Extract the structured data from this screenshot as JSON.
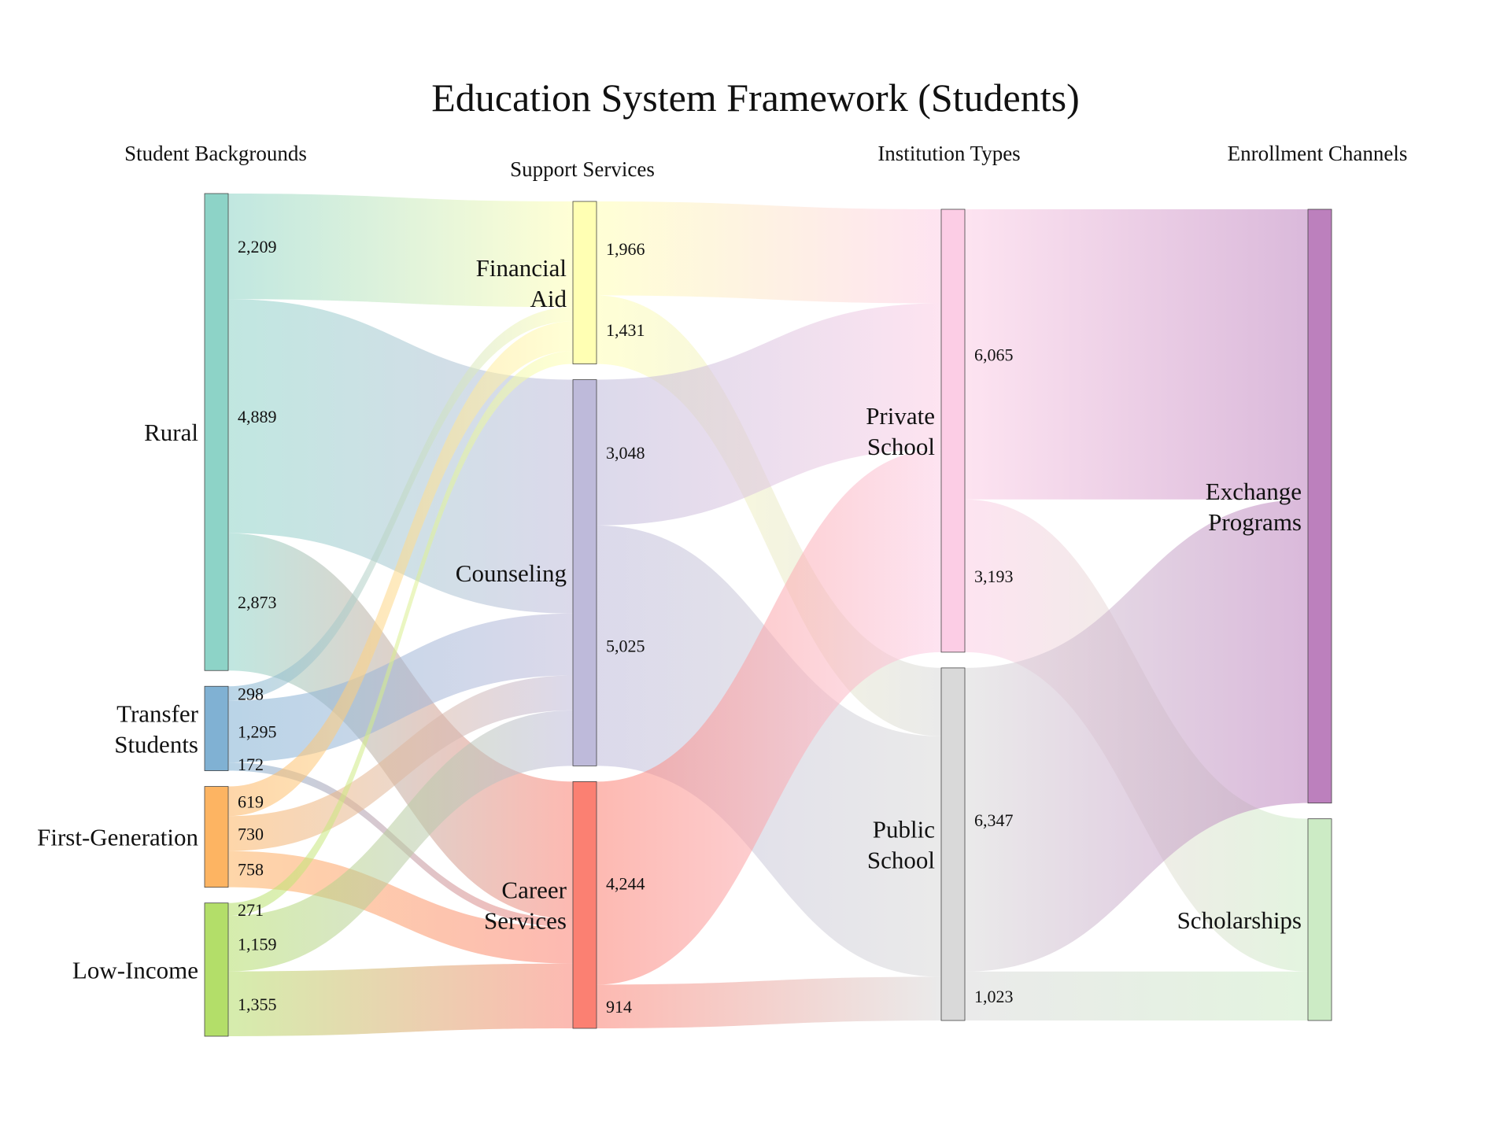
{
  "title": "Education System Framework (Students)",
  "columns": [
    "Student Backgrounds",
    "Support Services",
    "Institution Types",
    "Enrollment Channels"
  ],
  "chart_data": {
    "type": "sankey",
    "nodes": [
      {
        "id": "rural",
        "label": "Rural",
        "column": 0,
        "color": "#8dd3c7"
      },
      {
        "id": "transfer",
        "label": "Transfer Students",
        "column": 0,
        "color": "#80b1d3"
      },
      {
        "id": "firstgen",
        "label": "First-Generation",
        "column": 0,
        "color": "#fdb462"
      },
      {
        "id": "lowincome",
        "label": "Low-Income",
        "column": 0,
        "color": "#b3de69"
      },
      {
        "id": "finaid",
        "label": "Financial Aid",
        "column": 1,
        "color": "#ffffb3"
      },
      {
        "id": "counseling",
        "label": "Counseling",
        "column": 1,
        "color": "#bebada"
      },
      {
        "id": "career",
        "label": "Career Services",
        "column": 1,
        "color": "#fb8072"
      },
      {
        "id": "private",
        "label": "Private School",
        "column": 2,
        "color": "#fccde5"
      },
      {
        "id": "public",
        "label": "Public School",
        "column": 2,
        "color": "#d9d9d9"
      },
      {
        "id": "exchange",
        "label": "Exchange Programs",
        "column": 3,
        "color": "#bc80bd"
      },
      {
        "id": "scholar",
        "label": "Scholarships",
        "column": 3,
        "color": "#ccebc5"
      }
    ],
    "links": [
      {
        "source": "rural",
        "target": "finaid",
        "value": 2209,
        "label": "2,209"
      },
      {
        "source": "rural",
        "target": "counseling",
        "value": 4889,
        "label": "4,889"
      },
      {
        "source": "rural",
        "target": "career",
        "value": 2873,
        "label": "2,873"
      },
      {
        "source": "transfer",
        "target": "finaid",
        "value": 298,
        "label": "298"
      },
      {
        "source": "transfer",
        "target": "counseling",
        "value": 1295,
        "label": "1,295"
      },
      {
        "source": "transfer",
        "target": "career",
        "value": 172,
        "label": "172"
      },
      {
        "source": "firstgen",
        "target": "finaid",
        "value": 619,
        "label": "619"
      },
      {
        "source": "firstgen",
        "target": "counseling",
        "value": 730,
        "label": "730"
      },
      {
        "source": "firstgen",
        "target": "career",
        "value": 758,
        "label": "758"
      },
      {
        "source": "lowincome",
        "target": "finaid",
        "value": 271,
        "label": "271"
      },
      {
        "source": "lowincome",
        "target": "counseling",
        "value": 1159,
        "label": "1,159"
      },
      {
        "source": "lowincome",
        "target": "career",
        "value": 1355,
        "label": "1,355"
      },
      {
        "source": "finaid",
        "target": "private",
        "value": 1966,
        "label": "1,966"
      },
      {
        "source": "finaid",
        "target": "public",
        "value": 1431,
        "label": "1,431"
      },
      {
        "source": "counseling",
        "target": "private",
        "value": 3048,
        "label": "3,048"
      },
      {
        "source": "counseling",
        "target": "public",
        "value": 5025,
        "label": "5,025"
      },
      {
        "source": "career",
        "target": "private",
        "value": 4244,
        "label": "4,244"
      },
      {
        "source": "career",
        "target": "public",
        "value": 914,
        "label": "914"
      },
      {
        "source": "private",
        "target": "exchange",
        "value": 6065,
        "label": "6,065"
      },
      {
        "source": "private",
        "target": "scholar",
        "value": 3193,
        "label": "3,193"
      },
      {
        "source": "public",
        "target": "exchange",
        "value": 6347,
        "label": "6,347"
      },
      {
        "source": "public",
        "target": "scholar",
        "value": 1023,
        "label": "1,023"
      }
    ]
  }
}
